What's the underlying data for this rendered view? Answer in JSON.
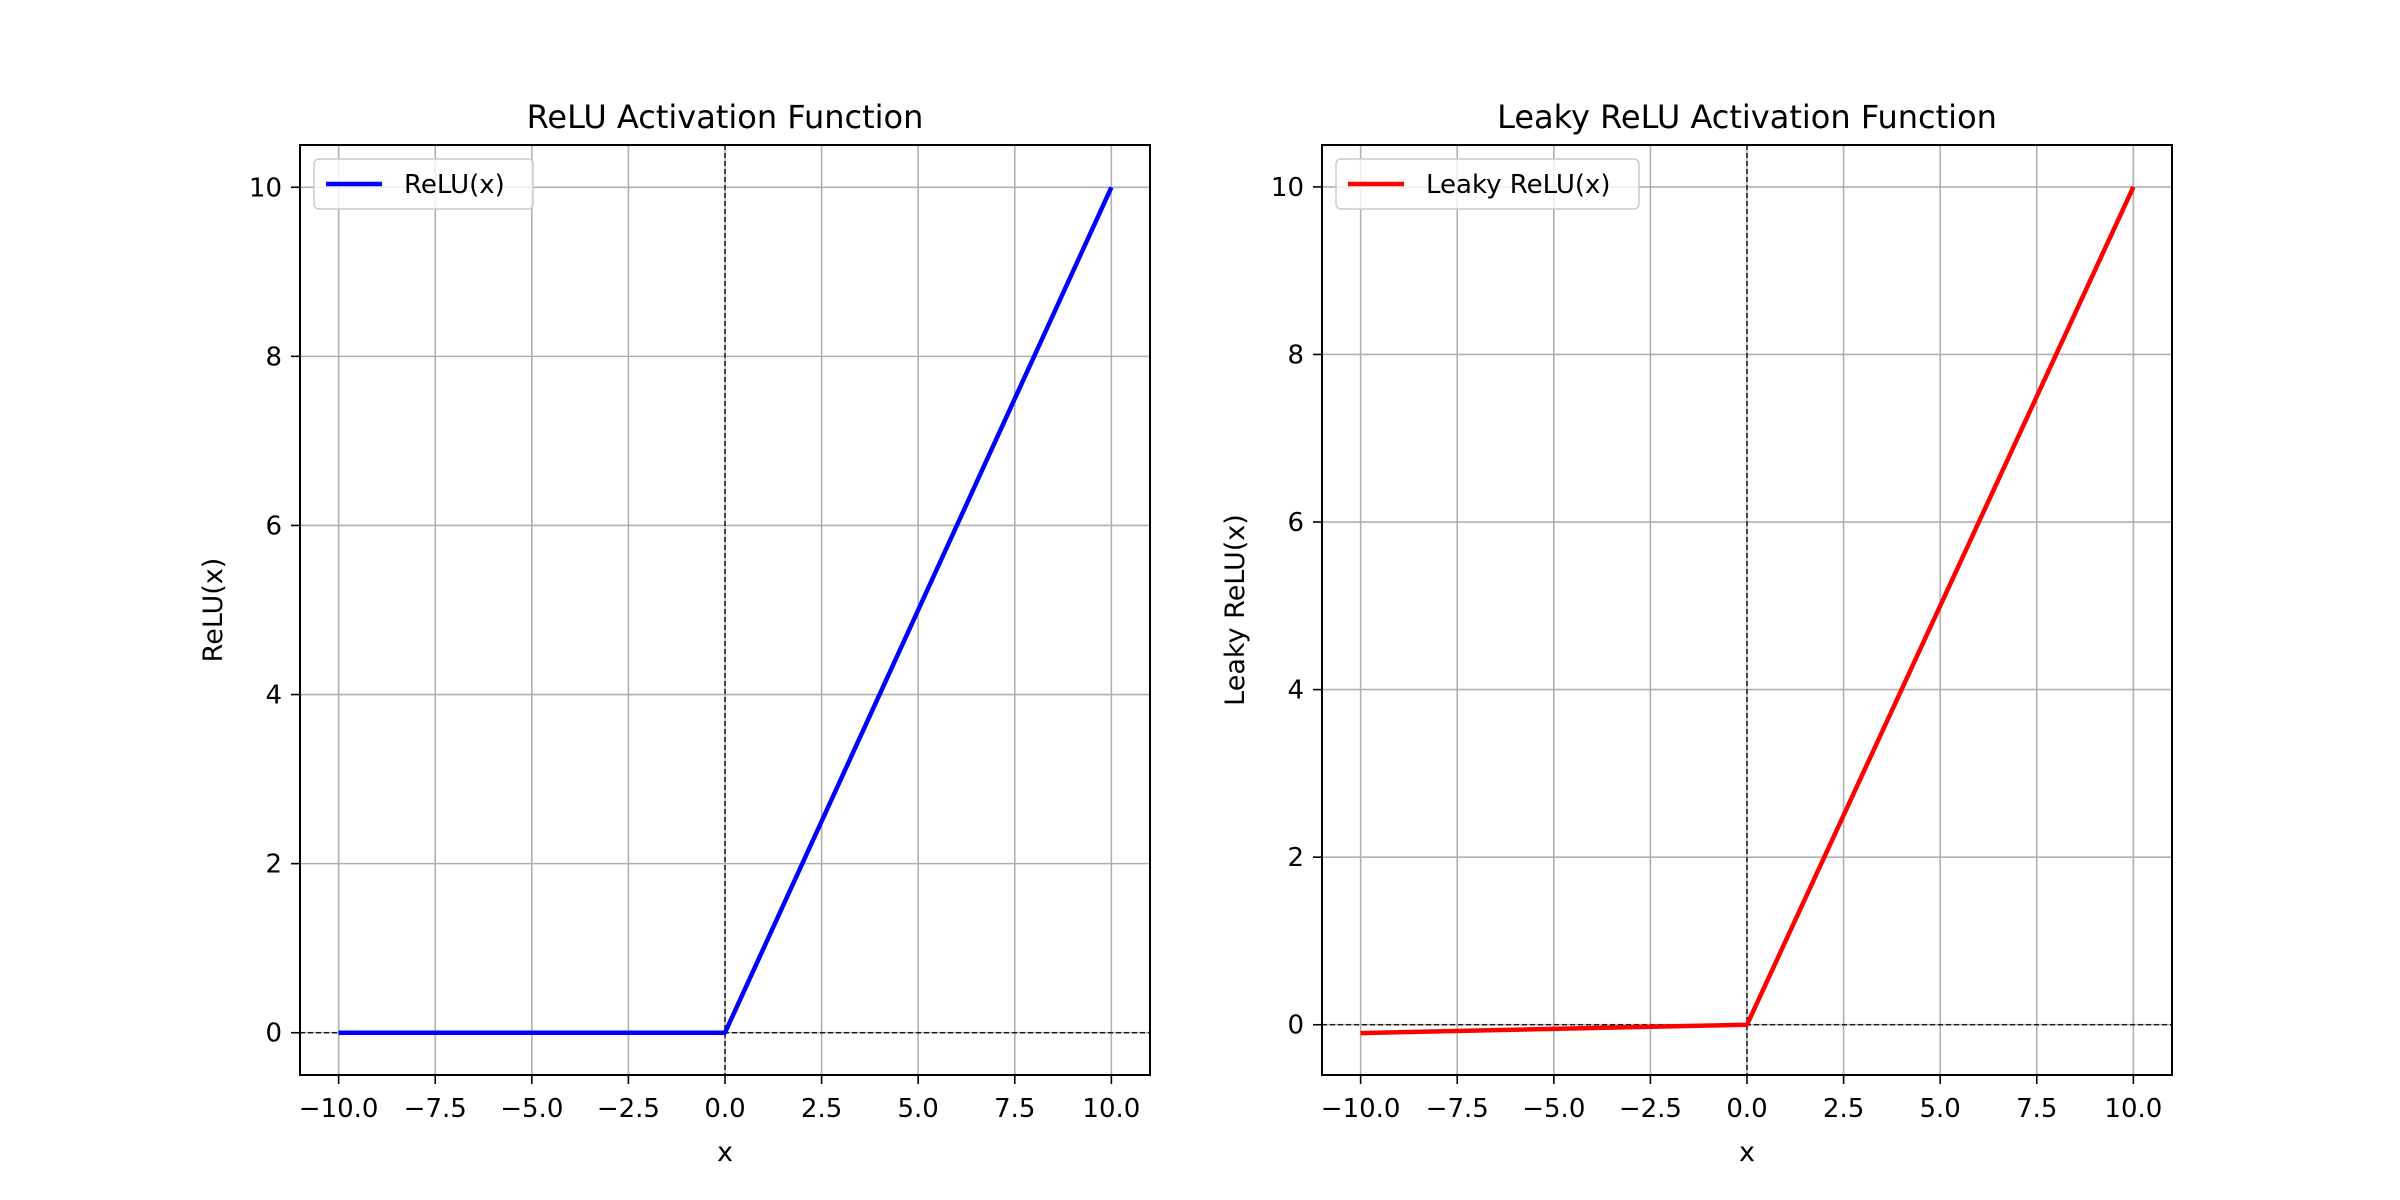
{
  "chart_data": [
    {
      "type": "line",
      "title": "ReLU Activation Function",
      "xlabel": "x",
      "ylabel": "ReLU(x)",
      "xlim": [
        -11.0,
        11.0
      ],
      "ylim": [
        -0.5,
        10.5
      ],
      "xticks": [
        -10.0,
        -7.5,
        -5.0,
        -2.5,
        0.0,
        2.5,
        5.0,
        7.5,
        10.0
      ],
      "xtick_labels": [
        "−10.0",
        "−7.5",
        "−5.0",
        "−2.5",
        "0.0",
        "2.5",
        "5.0",
        "7.5",
        "10.0"
      ],
      "yticks": [
        0,
        2,
        4,
        6,
        8,
        10
      ],
      "ytick_labels": [
        "0",
        "2",
        "4",
        "6",
        "8",
        "10"
      ],
      "grid": true,
      "reference_lines": {
        "x": 0,
        "y": 0,
        "style": "dashed",
        "color": "#000000"
      },
      "legend": "top-left",
      "series": [
        {
          "name": "ReLU(x)",
          "color": "#0000ff",
          "x": [
            -10,
            0,
            10
          ],
          "y": [
            0,
            0,
            10
          ]
        }
      ]
    },
    {
      "type": "line",
      "title": "Leaky ReLU Activation Function",
      "xlabel": "x",
      "ylabel": "Leaky ReLU(x)",
      "xlim": [
        -11.0,
        11.0
      ],
      "ylim": [
        -0.6,
        10.5
      ],
      "xticks": [
        -10.0,
        -7.5,
        -5.0,
        -2.5,
        0.0,
        2.5,
        5.0,
        7.5,
        10.0
      ],
      "xtick_labels": [
        "−10.0",
        "−7.5",
        "−5.0",
        "−2.5",
        "0.0",
        "2.5",
        "5.0",
        "7.5",
        "10.0"
      ],
      "yticks": [
        0,
        2,
        4,
        6,
        8,
        10
      ],
      "ytick_labels": [
        "0",
        "2",
        "4",
        "6",
        "8",
        "10"
      ],
      "grid": true,
      "reference_lines": {
        "x": 0,
        "y": 0,
        "style": "dashed",
        "color": "#000000"
      },
      "legend": "top-left",
      "series": [
        {
          "name": "Leaky ReLU(x)",
          "color": "#ff0000",
          "x": [
            -10,
            0,
            10
          ],
          "y": [
            -0.1,
            0,
            10
          ]
        }
      ]
    }
  ]
}
